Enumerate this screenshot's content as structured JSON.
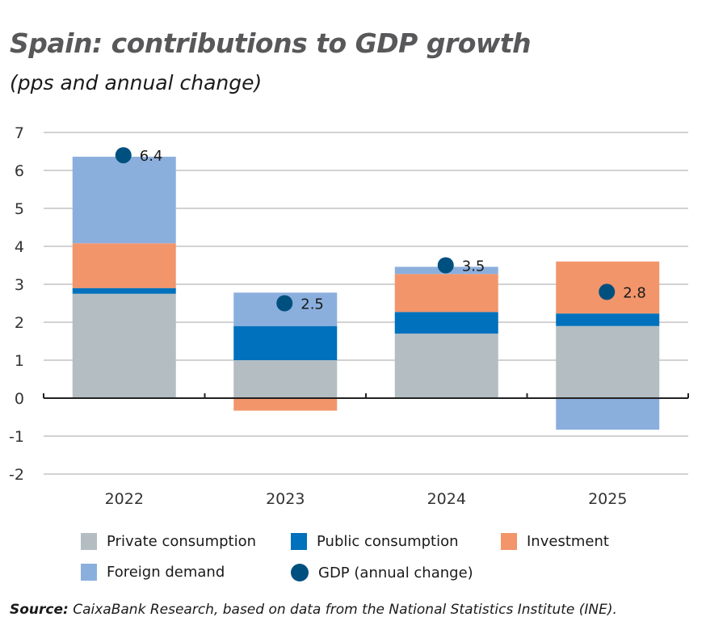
{
  "header": {
    "title": "Spain: contributions to GDP growth",
    "subtitle": "(pps and annual change)"
  },
  "chart_data": {
    "type": "bar",
    "stacked": true,
    "title": "Spain: contributions to GDP growth",
    "subtitle": "(pps and annual change)",
    "xlabel": "",
    "ylabel": "",
    "ylim": [
      -2,
      7
    ],
    "yticks": [
      7,
      6,
      5,
      4,
      3,
      2,
      1,
      0,
      -1,
      -2
    ],
    "grid": true,
    "legend_position": "bottom",
    "categories": [
      "2022",
      "2023",
      "2024",
      "2025"
    ],
    "series": [
      {
        "name": "Private consumption",
        "color": "#b3bdc2",
        "values": [
          2.75,
          1.0,
          1.7,
          1.9
        ]
      },
      {
        "name": "Public consumption",
        "color": "#0071bc",
        "values": [
          0.15,
          0.9,
          0.57,
          0.33
        ]
      },
      {
        "name": "Investment",
        "color": "#f2956b",
        "values": [
          1.18,
          -0.33,
          1.0,
          1.37
        ]
      },
      {
        "name": "Foreign demand",
        "color": "#8bafdd",
        "values": [
          2.28,
          0.88,
          0.19,
          -0.83
        ]
      }
    ],
    "line_series": {
      "name": "GDP (annual change)",
      "color": "#00507f",
      "values": [
        6.4,
        2.5,
        3.5,
        2.8
      ],
      "labels": [
        "6.4",
        "2.5",
        "3.5",
        "2.8"
      ]
    }
  },
  "legend": {
    "items": [
      {
        "label": "Private consumption",
        "color": "#b3bdc2",
        "shape": "square"
      },
      {
        "label": "Public consumption",
        "color": "#0071bc",
        "shape": "square"
      },
      {
        "label": "Investment",
        "color": "#f2956b",
        "shape": "square"
      },
      {
        "label": "Foreign demand",
        "color": "#8bafdd",
        "shape": "square"
      },
      {
        "label": "GDP (annual change)",
        "color": "#00507f",
        "shape": "circle"
      }
    ]
  },
  "footer": {
    "source_label": "Source:",
    "source_text": " CaixaBank Research, based on data from the National Statistics Institute (INE)."
  }
}
